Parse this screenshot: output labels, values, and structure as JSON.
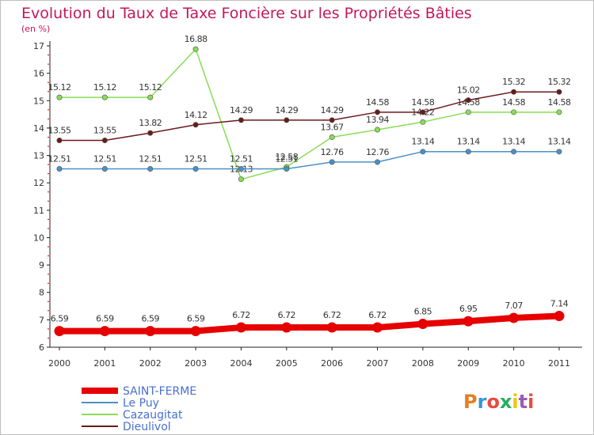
{
  "chart_data": {
    "type": "line",
    "title": "Evolution du Taux de Taxe Foncière sur les Propriétés Bâties",
    "subtitle": "(en %)",
    "xlabel": "",
    "ylabel": "",
    "x": [
      "2000",
      "2001",
      "2002",
      "2003",
      "2004",
      "2005",
      "2006",
      "2007",
      "2008",
      "2009",
      "2010",
      "2011"
    ],
    "ylim": [
      6,
      17
    ],
    "yticks": [
      "6",
      "7",
      "8",
      "9",
      "10",
      "11",
      "12",
      "13",
      "14",
      "15",
      "16",
      "17"
    ],
    "grid": false,
    "legend_position": "bottom-left",
    "series": [
      {
        "name": "SAINT-FERME",
        "color": "#e60000",
        "values": [
          6.59,
          6.59,
          6.59,
          6.59,
          6.72,
          6.72,
          6.72,
          6.72,
          6.85,
          6.95,
          7.07,
          7.14
        ],
        "labels": [
          "6.59",
          "6.59",
          "6.59",
          "6.59",
          "6.72",
          "6.72",
          "6.72",
          "6.72",
          "6.85",
          "6.95",
          "7.07",
          "7.14"
        ]
      },
      {
        "name": "Le Puy",
        "color": "#4a90c8",
        "values": [
          12.51,
          12.51,
          12.51,
          12.51,
          12.51,
          12.51,
          12.76,
          12.76,
          13.14,
          13.14,
          13.14,
          13.14
        ],
        "labels": [
          "12.51",
          "12.51",
          "12.51",
          "12.51",
          "12.51",
          "12.51",
          "12.76",
          "12.76",
          "13.14",
          "13.14",
          "13.14",
          "13.14"
        ]
      },
      {
        "name": "Cazaugitat",
        "color": "#88dd55",
        "values": [
          15.12,
          15.12,
          15.12,
          16.88,
          12.13,
          12.58,
          13.67,
          13.94,
          14.22,
          14.58,
          14.58,
          14.58
        ],
        "labels": [
          "15.12",
          "15.12",
          "15.12",
          "16.88",
          "12.13",
          "12.58",
          "13.67",
          "13.94",
          "14.22",
          "14.58",
          "14.58",
          "14.58"
        ]
      },
      {
        "name": "Dieulivol",
        "color": "#6b1a1a",
        "values": [
          13.55,
          13.55,
          13.82,
          14.12,
          14.29,
          14.29,
          14.29,
          14.58,
          14.58,
          15.02,
          15.32,
          15.32
        ],
        "labels": [
          "13.55",
          "13.55",
          "13.82",
          "14.12",
          "14.29",
          "14.29",
          "14.29",
          "14.58",
          "14.58",
          "15.02",
          "15.32",
          "15.32"
        ]
      }
    ],
    "title_color": "#c2185b"
  },
  "branding": {
    "logo_text": "Proxiti",
    "logo_colors": [
      "#e67e22",
      "#3498db",
      "#e74c3c",
      "#27ae60",
      "#f1c40f",
      "#9b59b6",
      "#e74c3c"
    ]
  }
}
